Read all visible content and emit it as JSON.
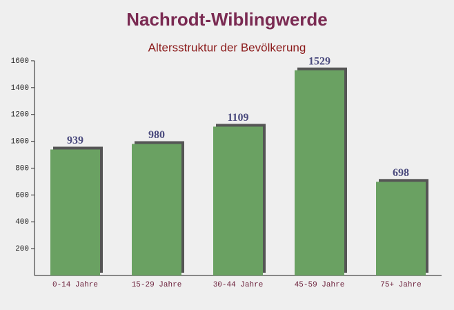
{
  "chart_data": {
    "type": "bar",
    "title": "Nachrodt-Wiblingwerde",
    "subtitle": "Altersstruktur der Bevölkerung",
    "categories": [
      "0-14 Jahre",
      "15-29 Jahre",
      "30-44 Jahre",
      "45-59 Jahre",
      "75+ Jahre"
    ],
    "values": [
      939,
      980,
      1109,
      1529,
      698
    ],
    "color": "#6aa162",
    "ylim": [
      0,
      1600
    ],
    "yticks": [
      200,
      400,
      600,
      800,
      1000,
      1200,
      1400,
      1600
    ],
    "grid": false
  }
}
